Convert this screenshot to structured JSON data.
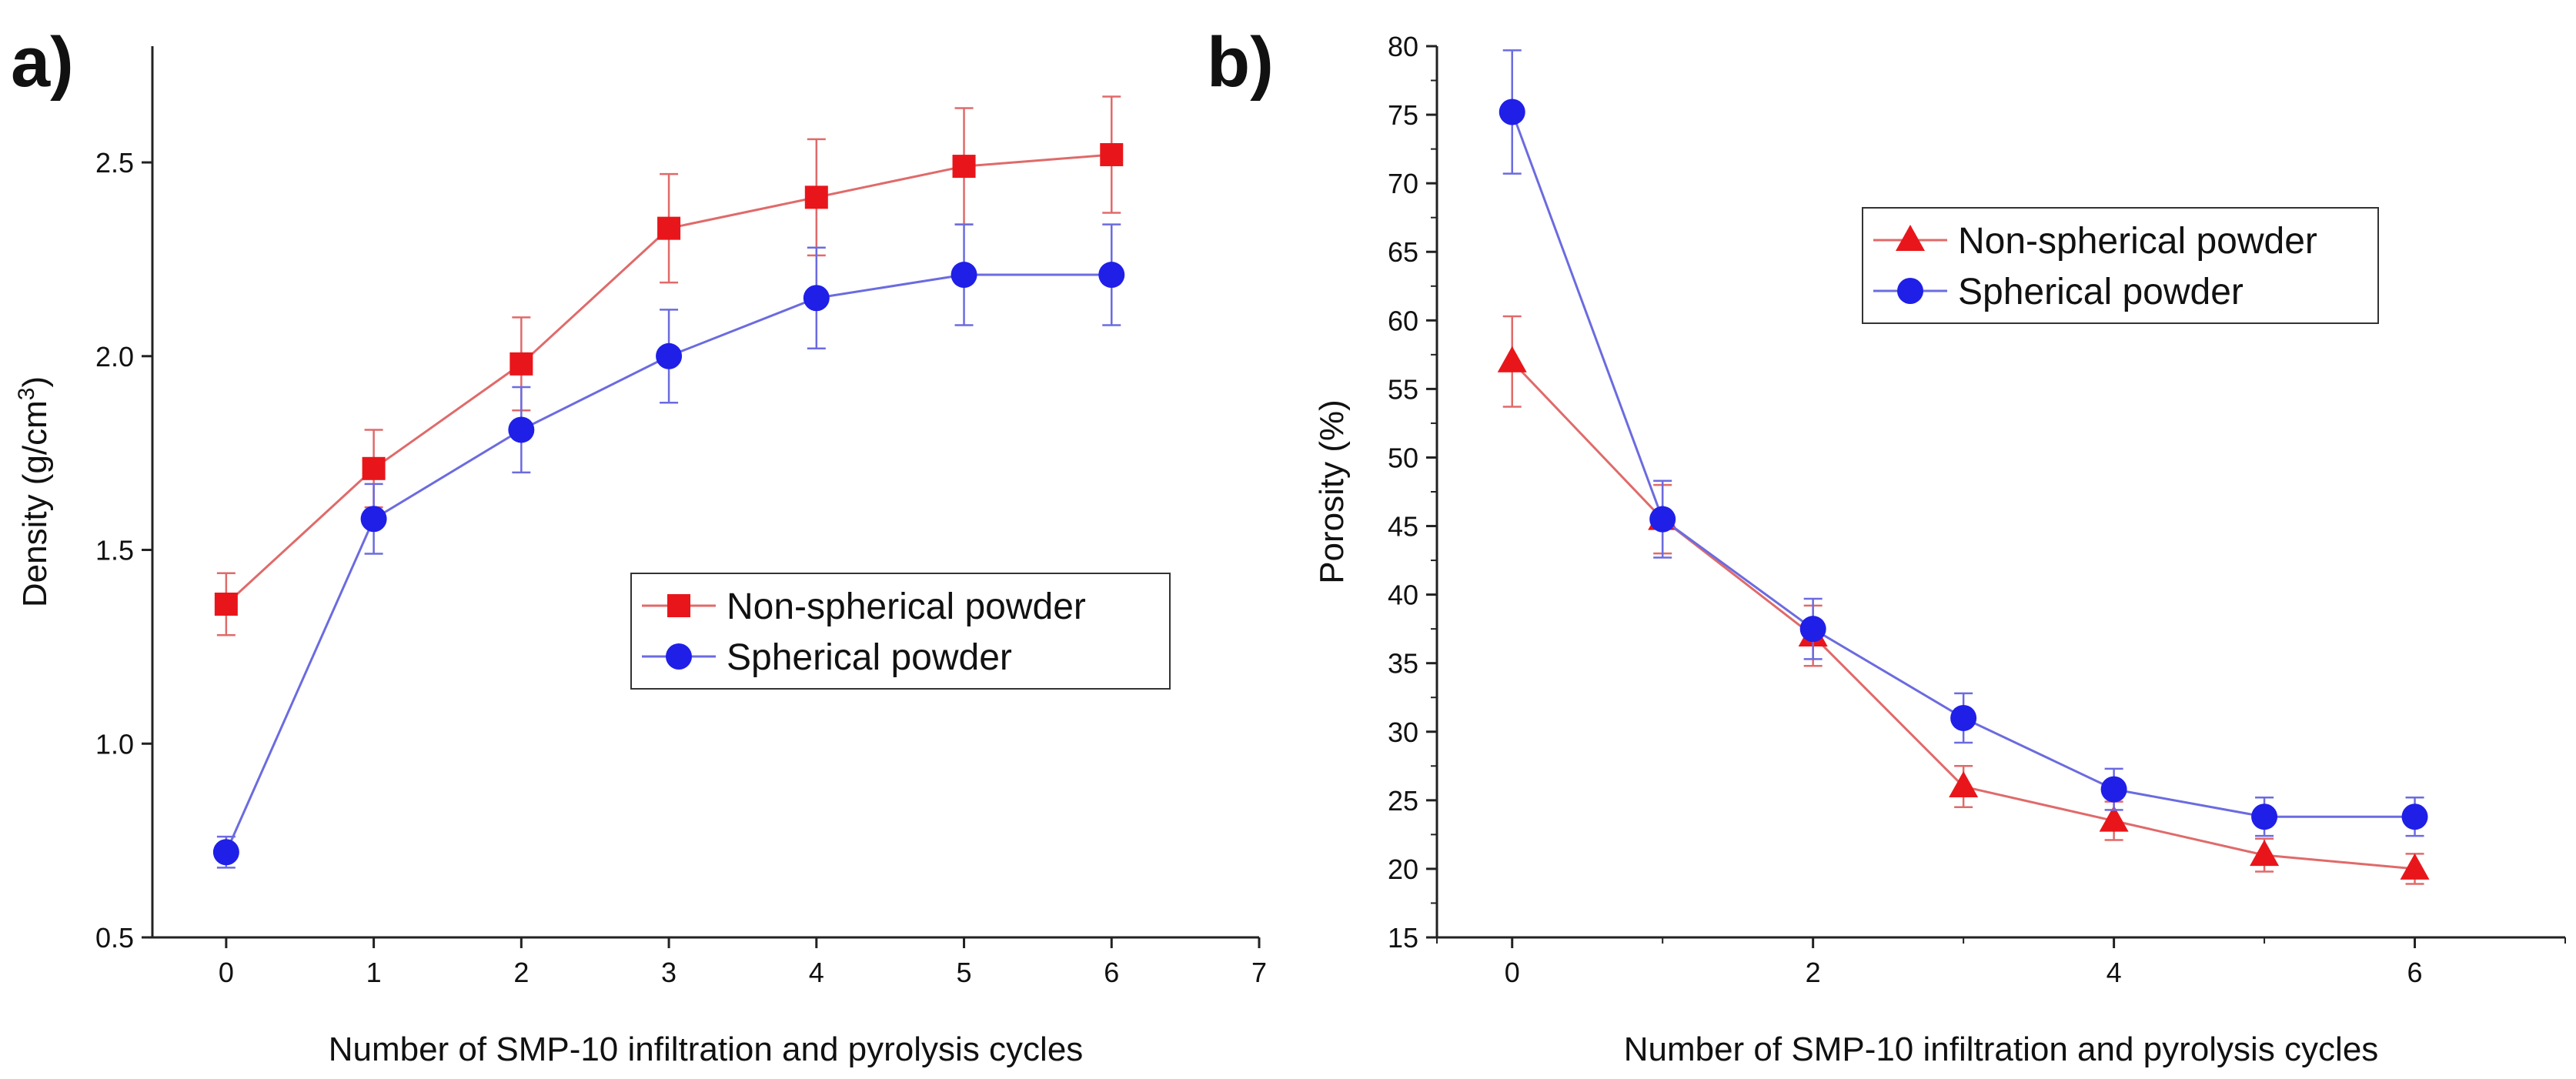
{
  "chart_data": [
    {
      "panel_label": "a)",
      "type": "line",
      "xlabel": "Number of SMP-10 infiltration and pyrolysis cycles",
      "ylabel": "Density (g/cm",
      "ylabel_sup": "3",
      "ylabel_close": ")",
      "xlim": [
        -0.5,
        7
      ],
      "ylim": [
        0.5,
        2.8
      ],
      "xticks": [
        0,
        1,
        2,
        3,
        4,
        5,
        6,
        7
      ],
      "xtick_labels": [
        "0",
        "1",
        "2",
        "3",
        "4",
        "5",
        "6",
        "7"
      ],
      "yticks": [
        0.5,
        1.0,
        1.5,
        2.0,
        2.5
      ],
      "ytick_labels": [
        "0.5",
        "1.0",
        "1.5",
        "2.0",
        "2.5"
      ],
      "legend_position": "center-right",
      "series": [
        {
          "name": "Non-spherical powder",
          "marker": "square",
          "color": "#e8161b",
          "line_color": "#e06a6a",
          "x": [
            0,
            1,
            2,
            3,
            4,
            5,
            6
          ],
          "values": [
            1.36,
            1.71,
            1.98,
            2.33,
            2.41,
            2.49,
            2.52
          ],
          "errors": [
            0.08,
            0.1,
            0.12,
            0.14,
            0.15,
            0.15,
            0.15
          ]
        },
        {
          "name": "Spherical powder",
          "marker": "circle",
          "color": "#1f1fe8",
          "line_color": "#6b6be0",
          "x": [
            0,
            1,
            2,
            3,
            4,
            5,
            6
          ],
          "values": [
            0.72,
            1.58,
            1.81,
            2.0,
            2.15,
            2.21,
            2.21
          ],
          "errors": [
            0.04,
            0.09,
            0.11,
            0.12,
            0.13,
            0.13,
            0.13
          ]
        }
      ]
    },
    {
      "panel_label": "b)",
      "type": "line",
      "xlabel": "Number of SMP-10 infiltration and pyrolysis cycles",
      "ylabel": "Porosity (%)",
      "ylabel_sup": "",
      "ylabel_close": "",
      "xlim": [
        -0.5,
        7
      ],
      "ylim": [
        15,
        80
      ],
      "xticks": [
        0,
        2,
        4,
        6
      ],
      "xtick_labels": [
        "0",
        "2",
        "4",
        "6"
      ],
      "yticks": [
        15,
        20,
        25,
        30,
        35,
        40,
        45,
        50,
        55,
        60,
        65,
        70,
        75,
        80
      ],
      "ytick_labels": [
        "15",
        "20",
        "25",
        "30",
        "35",
        "40",
        "45",
        "50",
        "55",
        "60",
        "65",
        "70",
        "75",
        "80"
      ],
      "legend_position": "top-right",
      "series": [
        {
          "name": "Non-spherical powder",
          "marker": "triangle",
          "color": "#e8161b",
          "line_color": "#e06a6a",
          "x": [
            0,
            1,
            2,
            3,
            4,
            5,
            6
          ],
          "values": [
            57,
            45.5,
            37,
            26,
            23.5,
            21,
            20
          ],
          "errors": [
            3.3,
            2.5,
            2.2,
            1.5,
            1.4,
            1.2,
            1.1
          ]
        },
        {
          "name": "Spherical powder",
          "marker": "circle",
          "color": "#1f1fe8",
          "line_color": "#6b6be0",
          "x": [
            0,
            1,
            2,
            3,
            4,
            5,
            6
          ],
          "values": [
            75.2,
            45.5,
            37.5,
            31,
            25.8,
            23.8,
            23.8
          ],
          "errors": [
            4.5,
            2.8,
            2.2,
            1.8,
            1.5,
            1.4,
            1.4
          ]
        }
      ]
    }
  ]
}
